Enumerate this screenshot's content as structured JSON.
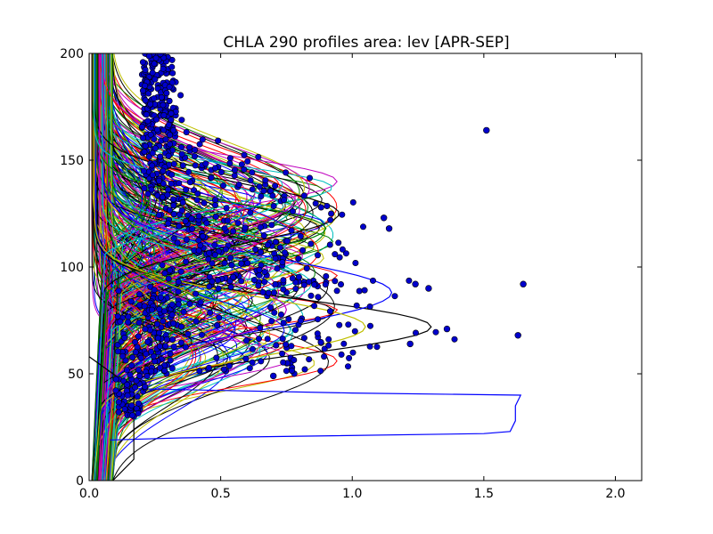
{
  "chart_data": {
    "type": "line",
    "title": "CHLA 290 profiles area: lev [APR-SEP]",
    "xlabel": "",
    "ylabel": "",
    "xlim": [
      0.0,
      2.1
    ],
    "ylim": [
      0,
      200
    ],
    "grid": false,
    "x_ticks": [
      "0.0",
      "0.5",
      "1.0",
      "1.5",
      "2.0"
    ],
    "y_ticks": [
      "0",
      "50",
      "100",
      "150",
      "200"
    ],
    "x_tick_values": [
      0.0,
      0.5,
      1.0,
      1.5,
      2.0
    ],
    "y_tick_values": [
      0,
      50,
      100,
      150,
      200
    ],
    "colors": [
      "#0000ff",
      "#008000",
      "#ff0000",
      "#00bfbf",
      "#bf00bf",
      "#bfbf00",
      "#000000"
    ],
    "profiles": [
      {
        "peak_x": 1.3,
        "peak_depth": 72,
        "width": 13,
        "base": 0.02,
        "color": "#000000"
      },
      {
        "peak_x": 1.15,
        "peak_depth": 88,
        "width": 16,
        "base": 0.05,
        "color": "#0000ff"
      },
      {
        "peak_x": 0.95,
        "peak_depth": 125,
        "width": 14,
        "base": 0.02,
        "color": "#000000"
      },
      {
        "peak_x": 0.8,
        "peak_depth": 95,
        "width": 10,
        "base": 0.05,
        "color": "#00bfbf"
      },
      {
        "peak_x": 1.05,
        "peak_depth": 72,
        "width": 14,
        "base": 0.02,
        "color": "#bfbf00"
      },
      {
        "peak_x": 0.9,
        "peak_depth": 118,
        "width": 12,
        "base": 0.03,
        "color": "#008000"
      },
      {
        "peak_x": 0.75,
        "peak_depth": 80,
        "width": 15,
        "base": 0.04,
        "color": "#bf00bf"
      },
      {
        "peak_x": 0.72,
        "peak_depth": 130,
        "width": 10,
        "base": 0.02,
        "color": "#00bfbf"
      }
    ],
    "anomaly_profile": {
      "color": "#0000ff",
      "points": [
        [
          0.18,
          43
        ],
        [
          1.0,
          41
        ],
        [
          1.64,
          40
        ],
        [
          1.62,
          35
        ],
        [
          1.62,
          28
        ],
        [
          1.6,
          23
        ],
        [
          1.5,
          22
        ],
        [
          0.35,
          20
        ],
        [
          0.08,
          19
        ]
      ]
    },
    "envelope_profile": {
      "color": "#000000",
      "points": [
        [
          0.0,
          200
        ],
        [
          0.0,
          170
        ],
        [
          0.0,
          150
        ],
        [
          0.0,
          130
        ],
        [
          0.0,
          70
        ],
        [
          0.0,
          58
        ],
        [
          0.17,
          43
        ],
        [
          0.17,
          10
        ],
        [
          0.09,
          0
        ]
      ]
    },
    "outlier_points": [
      {
        "x": 1.51,
        "y": 164
      },
      {
        "x": 1.65,
        "y": 92
      },
      {
        "x": 1.63,
        "y": 68
      },
      {
        "x": 1.36,
        "y": 71
      },
      {
        "x": 1.29,
        "y": 90
      },
      {
        "x": 1.24,
        "y": 92
      },
      {
        "x": 1.12,
        "y": 123
      },
      {
        "x": 1.14,
        "y": 118
      },
      {
        "x": 1.22,
        "y": 64
      },
      {
        "x": 0.7,
        "y": 49
      }
    ],
    "point_color": "#0000cc"
  }
}
